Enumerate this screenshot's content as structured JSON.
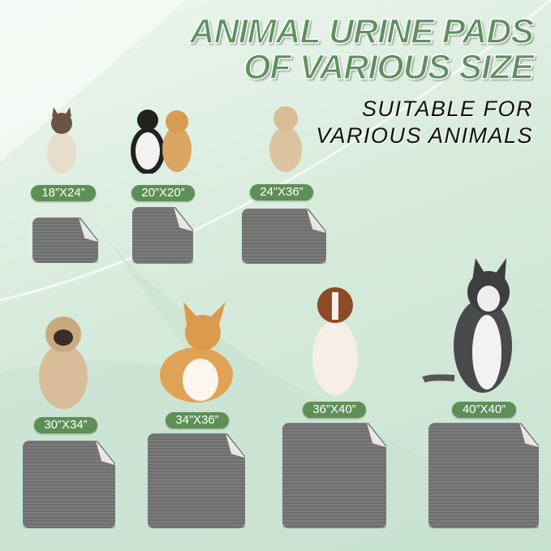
{
  "header": {
    "title_line1": "ANIMAL URINE PADS",
    "title_line2": "OF VARIOUS SIZE",
    "subtitle_line1": "SUITABLE FOR",
    "subtitle_line2": "VARIOUS ANIMALS"
  },
  "sizes": [
    {
      "label": "18”X24”",
      "animal": "siamese-cat"
    },
    {
      "label": "20”X20”",
      "animal": "cat-and-puppy"
    },
    {
      "label": "24”X36”",
      "animal": "tan-dog"
    },
    {
      "label": "30”X34”",
      "animal": "pug"
    },
    {
      "label": "34”X36”",
      "animal": "corgi"
    },
    {
      "label": "36”X40”",
      "animal": "australian-shepherd"
    },
    {
      "label": "40”X40”",
      "animal": "husky"
    }
  ],
  "colors": {
    "accent": "#5d8f57",
    "pad": "#767676",
    "background": "#d7ebdc"
  }
}
